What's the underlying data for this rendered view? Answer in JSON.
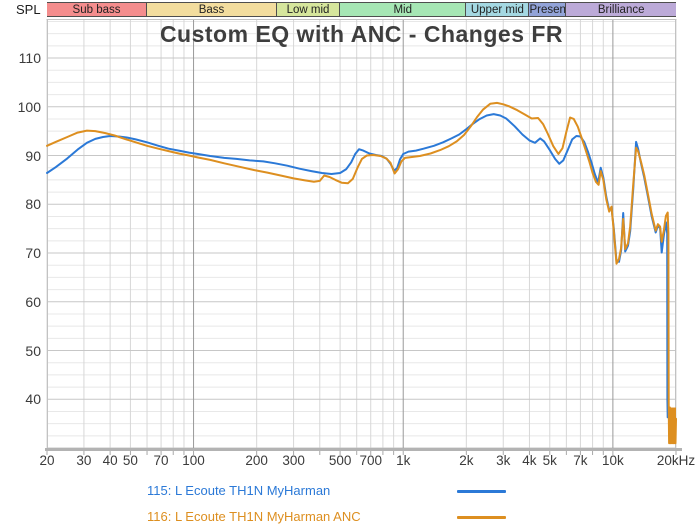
{
  "corner_label": "SPL",
  "title": "Custom EQ with ANC - Changes FR",
  "bands": [
    {
      "label": "Sub bass",
      "from_hz": 20,
      "to_hz": 60,
      "color": "#f48d8d"
    },
    {
      "label": "Bass",
      "from_hz": 60,
      "to_hz": 250,
      "color": "#f3dd9e"
    },
    {
      "label": "Low mid",
      "from_hz": 250,
      "to_hz": 500,
      "color": "#d6e69c"
    },
    {
      "label": "Mid",
      "from_hz": 500,
      "to_hz": 2000,
      "color": "#a6e6b4"
    },
    {
      "label": "Upper mid",
      "from_hz": 2000,
      "to_hz": 4000,
      "color": "#a4d8e2"
    },
    {
      "label": "Presence",
      "from_hz": 4000,
      "to_hz": 6000,
      "color": "#92a3d8"
    },
    {
      "label": "Brilliance",
      "from_hz": 6000,
      "to_hz": 20000,
      "color": "#bcaad8"
    }
  ],
  "chart_data": {
    "type": "line",
    "x_scale": "log",
    "x_range_hz": [
      20,
      20000
    ],
    "y_range_db": [
      30,
      118
    ],
    "ylabel": "SPL",
    "grid": true,
    "x_ticks": [
      {
        "hz": 20,
        "label": "20"
      },
      {
        "hz": 30,
        "label": "30"
      },
      {
        "hz": 40,
        "label": "40"
      },
      {
        "hz": 50,
        "label": "50"
      },
      {
        "hz": 70,
        "label": "70"
      },
      {
        "hz": 100,
        "label": "100"
      },
      {
        "hz": 200,
        "label": "200"
      },
      {
        "hz": 300,
        "label": "300"
      },
      {
        "hz": 500,
        "label": "500"
      },
      {
        "hz": 700,
        "label": "700"
      },
      {
        "hz": 1000,
        "label": "1k"
      },
      {
        "hz": 2000,
        "label": "2k"
      },
      {
        "hz": 3000,
        "label": "3k"
      },
      {
        "hz": 4000,
        "label": "4k"
      },
      {
        "hz": 5000,
        "label": "5k"
      },
      {
        "hz": 7000,
        "label": "7k"
      },
      {
        "hz": 10000,
        "label": "10k"
      },
      {
        "hz": 20000,
        "label": "20kHz"
      }
    ],
    "x_gridlines_hz": [
      20,
      30,
      40,
      50,
      60,
      70,
      80,
      90,
      100,
      200,
      300,
      400,
      500,
      600,
      700,
      800,
      900,
      1000,
      2000,
      3000,
      4000,
      5000,
      6000,
      7000,
      8000,
      9000,
      10000,
      20000
    ],
    "x_major_gridlines_hz": [
      100,
      1000,
      10000
    ],
    "y_tick_labels_db": [
      110,
      100,
      90,
      80,
      70,
      60,
      50,
      40
    ],
    "y_major_step_db": 10,
    "y_minor_step_db": 2.5,
    "series": [
      {
        "name": "115: L Ecoute TH1N MyHarman",
        "color": "#2b79d7",
        "points": [
          [
            20,
            86.4
          ],
          [
            22,
            87.6
          ],
          [
            25,
            89.4
          ],
          [
            28,
            91.2
          ],
          [
            31,
            92.6
          ],
          [
            34,
            93.4
          ],
          [
            37,
            93.8
          ],
          [
            40,
            94.0
          ],
          [
            44,
            93.9
          ],
          [
            48,
            93.7
          ],
          [
            53,
            93.3
          ],
          [
            60,
            92.7
          ],
          [
            68,
            92.0
          ],
          [
            76,
            91.4
          ],
          [
            85,
            91.0
          ],
          [
            95,
            90.6
          ],
          [
            105,
            90.3
          ],
          [
            120,
            89.9
          ],
          [
            140,
            89.5
          ],
          [
            160,
            89.3
          ],
          [
            185,
            89.0
          ],
          [
            215,
            88.8
          ],
          [
            245,
            88.4
          ],
          [
            280,
            87.9
          ],
          [
            320,
            87.3
          ],
          [
            365,
            86.8
          ],
          [
            410,
            86.4
          ],
          [
            455,
            86.2
          ],
          [
            500,
            86.4
          ],
          [
            535,
            87.2
          ],
          [
            565,
            88.6
          ],
          [
            590,
            90.3
          ],
          [
            615,
            91.3
          ],
          [
            645,
            91.0
          ],
          [
            690,
            90.4
          ],
          [
            740,
            90.1
          ],
          [
            790,
            89.9
          ],
          [
            835,
            89.3
          ],
          [
            870,
            88.3
          ],
          [
            905,
            86.9
          ],
          [
            935,
            87.4
          ],
          [
            965,
            89.2
          ],
          [
            1000,
            90.3
          ],
          [
            1060,
            90.8
          ],
          [
            1150,
            91.0
          ],
          [
            1250,
            91.4
          ],
          [
            1400,
            92.0
          ],
          [
            1550,
            92.7
          ],
          [
            1700,
            93.5
          ],
          [
            1850,
            94.3
          ],
          [
            2000,
            95.4
          ],
          [
            2150,
            96.5
          ],
          [
            2300,
            97.4
          ],
          [
            2500,
            98.2
          ],
          [
            2700,
            98.5
          ],
          [
            2900,
            98.2
          ],
          [
            3100,
            97.6
          ],
          [
            3400,
            96.0
          ],
          [
            3700,
            94.3
          ],
          [
            4000,
            93.1
          ],
          [
            4250,
            92.6
          ],
          [
            4500,
            93.5
          ],
          [
            4700,
            92.9
          ],
          [
            5000,
            91.1
          ],
          [
            5300,
            89.3
          ],
          [
            5550,
            88.3
          ],
          [
            5800,
            89.0
          ],
          [
            6100,
            91.2
          ],
          [
            6400,
            93.3
          ],
          [
            6700,
            94.0
          ],
          [
            7000,
            93.9
          ],
          [
            7300,
            92.8
          ],
          [
            7600,
            90.8
          ],
          [
            7900,
            88.6
          ],
          [
            8200,
            86.2
          ],
          [
            8500,
            84.4
          ],
          [
            8750,
            87.5
          ],
          [
            9000,
            85.5
          ],
          [
            9300,
            81.5
          ],
          [
            9600,
            78.8
          ],
          [
            9850,
            79.3
          ],
          [
            10100,
            75.0
          ],
          [
            10400,
            68.3
          ],
          [
            10700,
            68.2
          ],
          [
            10950,
            70.5
          ],
          [
            11200,
            78.2
          ],
          [
            11450,
            70.3
          ],
          [
            11800,
            71.5
          ],
          [
            12100,
            74.5
          ],
          [
            12500,
            83.0
          ],
          [
            12900,
            92.8
          ],
          [
            13200,
            91.3
          ],
          [
            13600,
            88.5
          ],
          [
            14100,
            85.5
          ],
          [
            14700,
            81.5
          ],
          [
            15300,
            77.6
          ],
          [
            16000,
            74.2
          ],
          [
            16400,
            75.6
          ],
          [
            16800,
            75.1
          ],
          [
            17100,
            70.1
          ],
          [
            17500,
            73.6
          ],
          [
            17900,
            76.3
          ],
          [
            18150,
            74.0
          ],
          [
            18200,
            40.0
          ],
          [
            18250,
            36.3
          ]
        ]
      },
      {
        "name": "116: L Ecoute TH1N MyHarman ANC",
        "color": "#dd8f20",
        "points": [
          [
            20,
            92.0
          ],
          [
            22,
            92.8
          ],
          [
            25,
            93.8
          ],
          [
            28,
            94.7
          ],
          [
            31,
            95.1
          ],
          [
            34,
            95.0
          ],
          [
            38,
            94.6
          ],
          [
            42,
            94.1
          ],
          [
            47,
            93.4
          ],
          [
            53,
            92.7
          ],
          [
            60,
            92.0
          ],
          [
            68,
            91.4
          ],
          [
            76,
            90.9
          ],
          [
            85,
            90.4
          ],
          [
            95,
            90.0
          ],
          [
            105,
            89.6
          ],
          [
            120,
            89.1
          ],
          [
            140,
            88.4
          ],
          [
            165,
            87.7
          ],
          [
            195,
            87.0
          ],
          [
            225,
            86.5
          ],
          [
            260,
            85.9
          ],
          [
            300,
            85.3
          ],
          [
            340,
            84.9
          ],
          [
            375,
            84.6
          ],
          [
            400,
            84.8
          ],
          [
            420,
            85.9
          ],
          [
            445,
            85.6
          ],
          [
            475,
            85.0
          ],
          [
            510,
            84.4
          ],
          [
            545,
            84.3
          ],
          [
            575,
            85.2
          ],
          [
            605,
            87.5
          ],
          [
            635,
            89.3
          ],
          [
            670,
            90.0
          ],
          [
            720,
            90.1
          ],
          [
            780,
            89.9
          ],
          [
            830,
            89.4
          ],
          [
            870,
            88.5
          ],
          [
            910,
            86.3
          ],
          [
            945,
            87.2
          ],
          [
            980,
            88.8
          ],
          [
            1020,
            89.5
          ],
          [
            1100,
            89.7
          ],
          [
            1200,
            89.9
          ],
          [
            1350,
            90.4
          ],
          [
            1500,
            91.1
          ],
          [
            1650,
            91.9
          ],
          [
            1800,
            92.9
          ],
          [
            1950,
            94.2
          ],
          [
            2100,
            96.0
          ],
          [
            2250,
            97.9
          ],
          [
            2400,
            99.4
          ],
          [
            2600,
            100.6
          ],
          [
            2800,
            100.8
          ],
          [
            3000,
            100.5
          ],
          [
            3200,
            100.1
          ],
          [
            3500,
            99.3
          ],
          [
            3800,
            98.4
          ],
          [
            4100,
            97.6
          ],
          [
            4400,
            97.7
          ],
          [
            4650,
            96.4
          ],
          [
            4900,
            94.4
          ],
          [
            5200,
            91.9
          ],
          [
            5500,
            90.3
          ],
          [
            5750,
            91.5
          ],
          [
            6000,
            94.9
          ],
          [
            6250,
            97.8
          ],
          [
            6500,
            97.5
          ],
          [
            6800,
            95.9
          ],
          [
            7100,
            93.6
          ],
          [
            7400,
            91.2
          ],
          [
            7700,
            88.9
          ],
          [
            8000,
            86.4
          ],
          [
            8300,
            84.6
          ],
          [
            8550,
            84.0
          ],
          [
            8750,
            86.8
          ],
          [
            9000,
            85.0
          ],
          [
            9300,
            81.0
          ],
          [
            9600,
            78.5
          ],
          [
            9850,
            79.5
          ],
          [
            10100,
            74.5
          ],
          [
            10400,
            67.8
          ],
          [
            10700,
            68.8
          ],
          [
            10950,
            71.0
          ],
          [
            11200,
            77.0
          ],
          [
            11450,
            70.8
          ],
          [
            11800,
            72.0
          ],
          [
            12100,
            75.5
          ],
          [
            12500,
            84.0
          ],
          [
            12900,
            91.6
          ],
          [
            13200,
            90.8
          ],
          [
            13600,
            88.8
          ],
          [
            14100,
            86.0
          ],
          [
            14700,
            82.0
          ],
          [
            15300,
            78.1
          ],
          [
            16000,
            74.6
          ],
          [
            16400,
            75.9
          ],
          [
            16800,
            75.4
          ],
          [
            17100,
            72.3
          ],
          [
            17500,
            74.6
          ],
          [
            17900,
            77.6
          ],
          [
            18250,
            78.3
          ],
          [
            18400,
            74.0
          ],
          [
            18450,
            39.0
          ],
          [
            18550,
            31.0
          ],
          [
            18700,
            38.3
          ],
          [
            18900,
            31.0
          ],
          [
            19150,
            37.5
          ],
          [
            19400,
            31.0
          ],
          [
            19650,
            38.0
          ],
          [
            19900,
            31.0
          ],
          [
            20000,
            36.0
          ]
        ],
        "tail_fill": {
          "from_hz": 18450,
          "to_hz": 20000,
          "top_db": 38.3,
          "bottom_db": 30.8
        }
      }
    ]
  },
  "legend": {
    "items": [
      {
        "label": "115: L Ecoute TH1N MyHarman",
        "color": "#2b79d7"
      },
      {
        "label": "116: L Ecoute TH1N MyHarman ANC",
        "color": "#dd8f20"
      }
    ]
  }
}
